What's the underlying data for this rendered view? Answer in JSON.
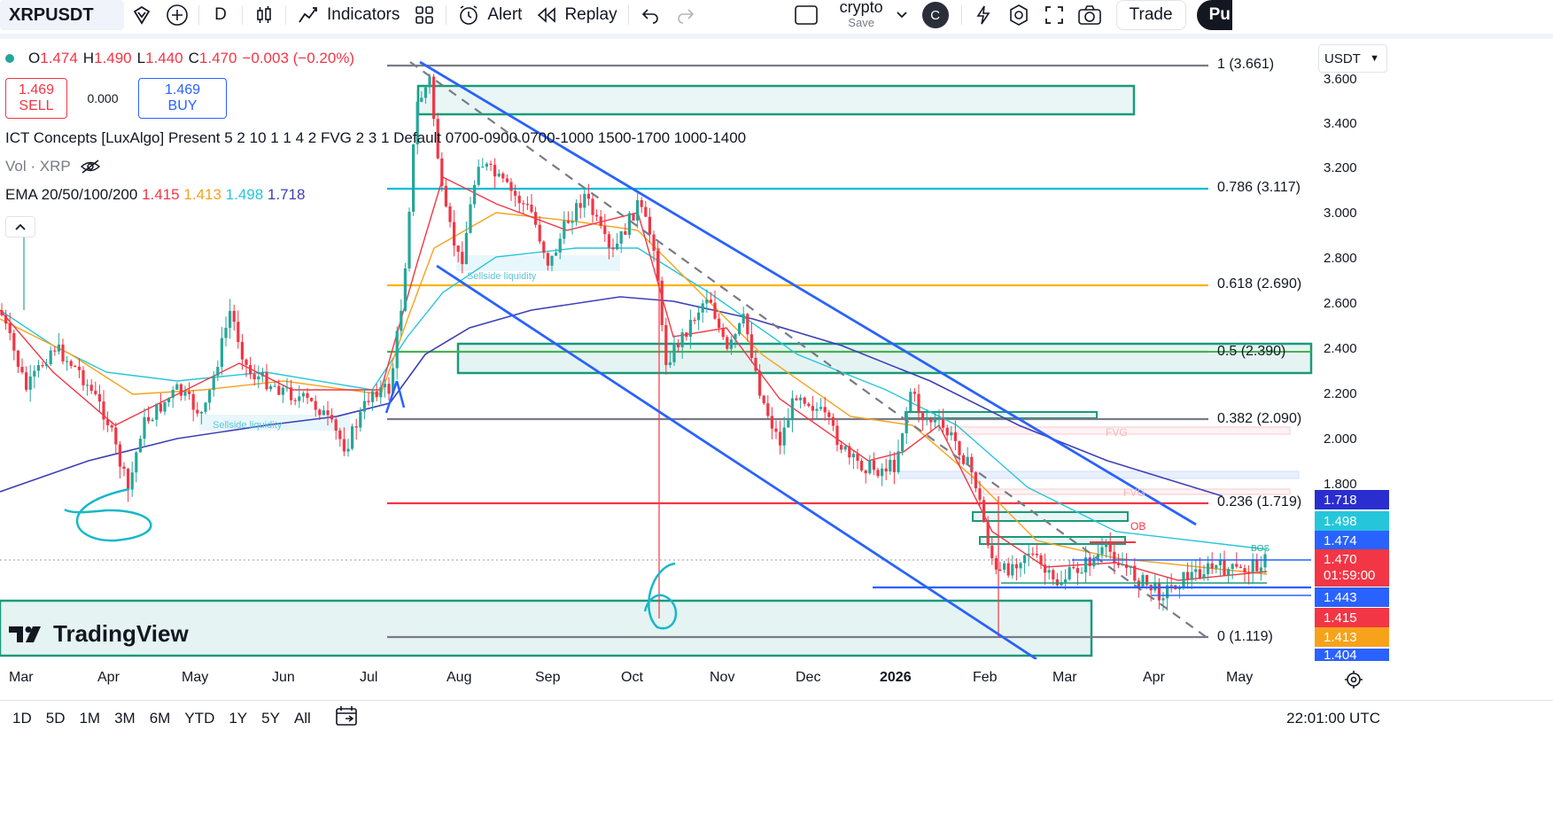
{
  "toolbar": {
    "symbol": "XRPUSDT",
    "interval": "D",
    "indicators_label": "Indicators",
    "alert_label": "Alert",
    "replay_label": "Replay",
    "layout_name": "crypto",
    "layout_save": "Save",
    "account_initial": "C",
    "trade_label": "Trade",
    "publish_label": "Pu"
  },
  "legend": {
    "ohlc": {
      "open_label": "O",
      "open": "1.474",
      "high_label": "H",
      "high": "1.490",
      "low_label": "L",
      "low": "1.440",
      "close_label": "C",
      "close": "1.470",
      "change": "−0.003 (−0.20%)"
    },
    "sell_price": "1.469",
    "sell_label": "SELL",
    "spread": "0.000",
    "buy_price": "1.469",
    "buy_label": "BUY",
    "indicator_ict": "ICT Concepts [LuxAlgo] Present 5 2 10 1 1 4 2 FVG 2 3 1 Default 0700-0900 0700-1000 1500-1700 1000-1400",
    "indicator_vol": "Vol · XRP",
    "indicator_ema": "EMA 20/50/100/200",
    "ema_values": [
      "1.415",
      "1.413",
      "1.498",
      "1.718"
    ]
  },
  "price_axis": {
    "currency": "USDT",
    "ticks": [
      "3.600",
      "3.400",
      "3.200",
      "3.000",
      "2.800",
      "2.600",
      "2.400",
      "2.200",
      "2.000",
      "1.800"
    ],
    "labels": [
      {
        "text": "1.718",
        "color": "#2a2ecf"
      },
      {
        "text": "1.498",
        "color": "#26c6da"
      },
      {
        "text": "1.474",
        "color": "#2962ff"
      },
      {
        "text": "1.470",
        "sub": "01:59:00",
        "color": "#f23645"
      },
      {
        "text": "1.443",
        "color": "#2962ff"
      },
      {
        "text": "1.415",
        "color": "#f23645"
      },
      {
        "text": "1.413",
        "color": "#f7a21b"
      },
      {
        "text": "1.404",
        "color": "#2962ff"
      }
    ]
  },
  "fib_levels": [
    {
      "label": "1 (3.661)",
      "color": "#787b86"
    },
    {
      "label": "0.786 (3.117)",
      "color": "#00bcd4"
    },
    {
      "label": "0.618 (2.690)",
      "color": "#f7b500"
    },
    {
      "label": "0.5 (2.390)",
      "color": "#4caf50"
    },
    {
      "label": "0.382 (2.090)",
      "color": "#787b86"
    },
    {
      "label": "0.236 (1.719)",
      "color": "#f23645"
    },
    {
      "label": "0 (1.119)",
      "color": "#787b86"
    }
  ],
  "annotations": {
    "sellside_1": "Sellside liquidity",
    "sellside_2": "Sellside liquidity",
    "fvg_1": "FVG",
    "fvg_2": "FVG",
    "ob": "OB",
    "bos": "BOS",
    "drawn_digit_1": "6",
    "drawn_digit_2": "6"
  },
  "time_axis": [
    "Mar",
    "Apr",
    "May",
    "Jun",
    "Jul",
    "Aug",
    "Sep",
    "Oct",
    "Nov",
    "Dec",
    "2026",
    "Feb",
    "Mar",
    "Apr",
    "May"
  ],
  "bottom_bar": {
    "ranges": [
      "1D",
      "5D",
      "1M",
      "3M",
      "6M",
      "YTD",
      "1Y",
      "5Y",
      "All"
    ],
    "clock": "22:01:00 UTC"
  },
  "brand": "TradingView",
  "colors": {
    "up": "#26a69a",
    "down": "#f23645",
    "accent": "#2962ff"
  }
}
